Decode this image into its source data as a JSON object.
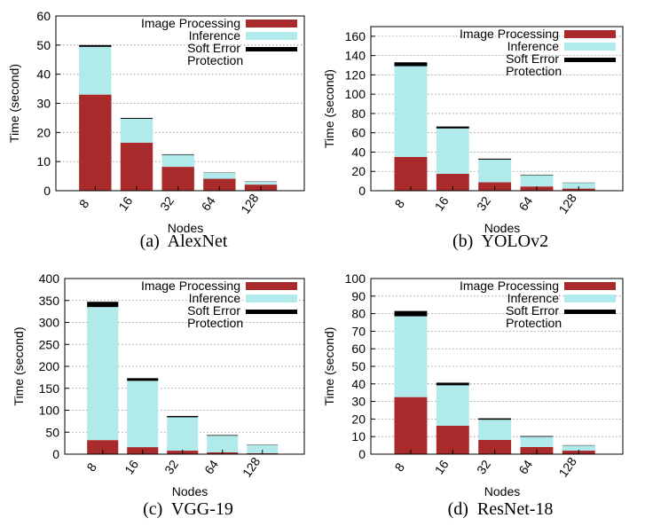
{
  "figure": {
    "panels": [
      {
        "caption": "(a)  AlexNet"
      },
      {
        "caption": "(b)  YOLOv2"
      },
      {
        "caption": "(c)  VGG-19"
      },
      {
        "caption": "(d)  ResNet-18"
      }
    ]
  },
  "colors": {
    "image_processing": "#a82a2a",
    "inference": "#b0eaea",
    "soft_error": "#000000"
  },
  "chart_data": [
    {
      "type": "bar",
      "stacked": true,
      "caption": "(a)  AlexNet",
      "xlabel": "Nodes",
      "ylabel": "Time (second)",
      "categories": [
        "8",
        "16",
        "32",
        "64",
        "128"
      ],
      "ylim": [
        0,
        60
      ],
      "yticks": [
        0,
        10,
        20,
        30,
        40,
        50,
        60
      ],
      "grid": "y-dotted",
      "legend_position": "top-right",
      "legend_lines": [
        [
          "Image Processing"
        ],
        [
          "Inference"
        ],
        [
          "Soft Error",
          "Protection"
        ]
      ],
      "series": [
        {
          "name": "Image Processing",
          "values": [
            33,
            16.5,
            8.2,
            4.1,
            2.1
          ]
        },
        {
          "name": "Inference",
          "values": [
            16.4,
            8.2,
            4.1,
            2.0,
            1.0
          ]
        },
        {
          "name": "Soft Error Protection",
          "values": [
            0.6,
            0.3,
            0.2,
            0.1,
            0.1
          ]
        }
      ]
    },
    {
      "type": "bar",
      "stacked": true,
      "caption": "(b)  YOLOv2",
      "xlabel": "Nodes",
      "ylabel": "Time (second)",
      "categories": [
        "8",
        "16",
        "32",
        "64",
        "128"
      ],
      "ylim": [
        0,
        170
      ],
      "yticks": [
        0,
        20,
        40,
        60,
        80,
        100,
        120,
        140,
        160
      ],
      "grid": "y-dotted",
      "legend_position": "top-right",
      "legend_lines": [
        [
          "Image Processing"
        ],
        [
          "Inference"
        ],
        [
          "Soft Error",
          "Protection"
        ]
      ],
      "series": [
        {
          "name": "Image Processing",
          "values": [
            35,
            17.5,
            8.7,
            4.4,
            2.2
          ]
        },
        {
          "name": "Inference",
          "values": [
            94,
            47,
            23.5,
            11.7,
            5.9
          ]
        },
        {
          "name": "Soft Error Protection",
          "values": [
            4,
            2,
            1,
            0.5,
            0.3
          ]
        }
      ]
    },
    {
      "type": "bar",
      "stacked": true,
      "caption": "(c)  VGG-19",
      "xlabel": "Nodes",
      "ylabel": "Time (second)",
      "categories": [
        "8",
        "16",
        "32",
        "64",
        "128"
      ],
      "ylim": [
        0,
        400
      ],
      "yticks": [
        0,
        50,
        100,
        150,
        200,
        250,
        300,
        350,
        400
      ],
      "grid": "y-dotted",
      "legend_position": "top-right",
      "legend_lines": [
        [
          "Image Processing"
        ],
        [
          "Inference"
        ],
        [
          "Soft Error",
          "Protection"
        ]
      ],
      "series": [
        {
          "name": "Image Processing",
          "values": [
            32,
            16,
            8,
            4,
            2
          ]
        },
        {
          "name": "Inference",
          "values": [
            303,
            151,
            76,
            38,
            19
          ]
        },
        {
          "name": "Soft Error Protection",
          "values": [
            12,
            6,
            3,
            1.5,
            0.8
          ]
        }
      ]
    },
    {
      "type": "bar",
      "stacked": true,
      "caption": "(d)  ResNet-18",
      "xlabel": "Nodes",
      "ylabel": "Time (second)",
      "categories": [
        "8",
        "16",
        "32",
        "64",
        "128"
      ],
      "ylim": [
        0,
        100
      ],
      "yticks": [
        0,
        10,
        20,
        30,
        40,
        50,
        60,
        70,
        80,
        90,
        100
      ],
      "grid": "y-dotted",
      "legend_position": "top-right",
      "legend_lines": [
        [
          "Image Processing"
        ],
        [
          "Inference"
        ],
        [
          "Soft Error",
          "Protection"
        ]
      ],
      "series": [
        {
          "name": "Image Processing",
          "values": [
            32.5,
            16.2,
            8.1,
            4.1,
            2.0
          ]
        },
        {
          "name": "Inference",
          "values": [
            46,
            23,
            11.5,
            5.8,
            2.9
          ]
        },
        {
          "name": "Soft Error Protection",
          "values": [
            3,
            1.5,
            0.8,
            0.4,
            0.2
          ]
        }
      ]
    }
  ]
}
